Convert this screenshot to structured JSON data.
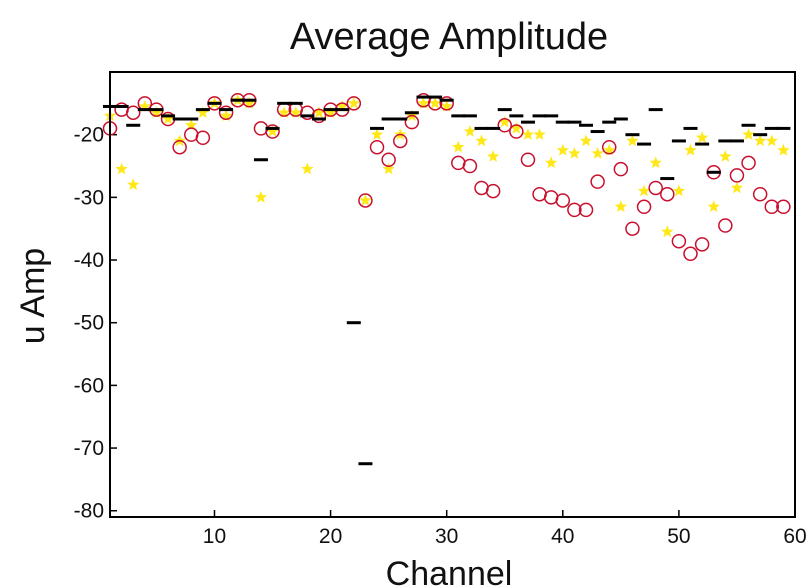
{
  "chart_data": {
    "type": "scatter",
    "title": "Average Amplitude",
    "xlabel": "Channel",
    "ylabel": "u Amp",
    "xlim": [
      1,
      60
    ],
    "ylim": [
      -81,
      -10
    ],
    "xticks": [
      10,
      20,
      30,
      40,
      50,
      60
    ],
    "yticks": [
      -20,
      -30,
      -40,
      -50,
      -60,
      -70,
      -80
    ],
    "grid": false,
    "series": [
      {
        "marker": "dash",
        "color": "#000000",
        "points": [
          [
            1,
            -15.5
          ],
          [
            2,
            -15.5
          ],
          [
            3,
            -18.5
          ],
          [
            4,
            -16
          ],
          [
            5,
            -16
          ],
          [
            6,
            -17
          ],
          [
            7,
            -17.5
          ],
          [
            8,
            -17.5
          ],
          [
            9,
            -16
          ],
          [
            10,
            -15
          ],
          [
            11,
            -16
          ],
          [
            12,
            -14.5
          ],
          [
            13,
            -14.5
          ],
          [
            14,
            -24
          ],
          [
            15,
            -19
          ],
          [
            16,
            -15
          ],
          [
            17,
            -15
          ],
          [
            18,
            -17
          ],
          [
            19,
            -17.5
          ],
          [
            20,
            -16
          ],
          [
            21,
            -16
          ],
          [
            22,
            -50
          ],
          [
            23,
            -72.5
          ],
          [
            24,
            -19
          ],
          [
            25,
            -17.5
          ],
          [
            26,
            -17.5
          ],
          [
            27,
            -16.5
          ],
          [
            28,
            -14
          ],
          [
            29,
            -14
          ],
          [
            30,
            -14.5
          ],
          [
            31,
            -17
          ],
          [
            32,
            -17
          ],
          [
            33,
            -19
          ],
          [
            34,
            -19
          ],
          [
            35,
            -16
          ],
          [
            36,
            -17
          ],
          [
            37,
            -18
          ],
          [
            38,
            -17
          ],
          [
            39,
            -17
          ],
          [
            40,
            -18
          ],
          [
            41,
            -18
          ],
          [
            42,
            -18.5
          ],
          [
            43,
            -19.5
          ],
          [
            44,
            -18
          ],
          [
            45,
            -17.5
          ],
          [
            46,
            -20
          ],
          [
            47,
            -21.5
          ],
          [
            48,
            -16
          ],
          [
            49,
            -27
          ],
          [
            50,
            -21
          ],
          [
            51,
            -19
          ],
          [
            52,
            -21.5
          ],
          [
            53,
            -26
          ],
          [
            54,
            -21
          ],
          [
            55,
            -21
          ],
          [
            56,
            -18.5
          ],
          [
            57,
            -20
          ],
          [
            58,
            -19
          ],
          [
            59,
            -19
          ]
        ]
      },
      {
        "marker": "circle",
        "color": "#c8102e",
        "points": [
          [
            1,
            -19
          ],
          [
            2,
            -16
          ],
          [
            3,
            -16.5
          ],
          [
            4,
            -15
          ],
          [
            5,
            -16
          ],
          [
            6,
            -17.5
          ],
          [
            7,
            -22
          ],
          [
            8,
            -20
          ],
          [
            9,
            -20.5
          ],
          [
            10,
            -15
          ],
          [
            11,
            -16.5
          ],
          [
            12,
            -14.5
          ],
          [
            13,
            -14.5
          ],
          [
            14,
            -19
          ],
          [
            15,
            -19.5
          ],
          [
            16,
            -16
          ],
          [
            17,
            -16
          ],
          [
            18,
            -16.5
          ],
          [
            19,
            -17
          ],
          [
            20,
            -16
          ],
          [
            21,
            -16
          ],
          [
            22,
            -15
          ],
          [
            23,
            -30.5
          ],
          [
            24,
            -22
          ],
          [
            25,
            -24
          ],
          [
            26,
            -21
          ],
          [
            27,
            -18
          ],
          [
            28,
            -14.5
          ],
          [
            29,
            -15
          ],
          [
            30,
            -15
          ],
          [
            31,
            -24.5
          ],
          [
            32,
            -25
          ],
          [
            33,
            -28.5
          ],
          [
            34,
            -29
          ],
          [
            35,
            -18.5
          ],
          [
            36,
            -19.5
          ],
          [
            37,
            -24
          ],
          [
            38,
            -29.5
          ],
          [
            39,
            -30
          ],
          [
            40,
            -30.5
          ],
          [
            41,
            -32
          ],
          [
            42,
            -32
          ],
          [
            43,
            -27.5
          ],
          [
            44,
            -22
          ],
          [
            45,
            -25.5
          ],
          [
            46,
            -35
          ],
          [
            47,
            -31.5
          ],
          [
            48,
            -28.5
          ],
          [
            49,
            -29.5
          ],
          [
            50,
            -37
          ],
          [
            51,
            -39
          ],
          [
            52,
            -37.5
          ],
          [
            53,
            -26
          ],
          [
            54,
            -34.5
          ],
          [
            55,
            -26.5
          ],
          [
            56,
            -24.5
          ],
          [
            57,
            -29.5
          ],
          [
            58,
            -31.5
          ],
          [
            59,
            -31.5
          ]
        ]
      },
      {
        "marker": "star",
        "color": "#ffe600",
        "points": [
          [
            1,
            -17
          ],
          [
            2,
            -25.5
          ],
          [
            3,
            -28
          ],
          [
            4,
            -15.5
          ],
          [
            5,
            -16.5
          ],
          [
            6,
            -17.5
          ],
          [
            7,
            -21
          ],
          [
            8,
            -18.5
          ],
          [
            9,
            -16.5
          ],
          [
            10,
            -15
          ],
          [
            11,
            -17
          ],
          [
            12,
            -14.5
          ],
          [
            13,
            -15
          ],
          [
            14,
            -30
          ],
          [
            15,
            -19.5
          ],
          [
            16,
            -16.5
          ],
          [
            17,
            -16.5
          ],
          [
            18,
            -25.5
          ],
          [
            19,
            -16.5
          ],
          [
            20,
            -16.5
          ],
          [
            21,
            -15.5
          ],
          [
            22,
            -15
          ],
          [
            23,
            -30.5
          ],
          [
            24,
            -20
          ],
          [
            25,
            -25.5
          ],
          [
            26,
            -20
          ],
          [
            27,
            -17
          ],
          [
            28,
            -15
          ],
          [
            29,
            -15
          ],
          [
            30,
            -15.5
          ],
          [
            31,
            -22
          ],
          [
            32,
            -19.5
          ],
          [
            33,
            -21
          ],
          [
            34,
            -23.5
          ],
          [
            35,
            -18
          ],
          [
            36,
            -19
          ],
          [
            37,
            -20
          ],
          [
            38,
            -20
          ],
          [
            39,
            -24.5
          ],
          [
            40,
            -22.5
          ],
          [
            41,
            -23
          ],
          [
            42,
            -21
          ],
          [
            43,
            -23
          ],
          [
            44,
            -22.5
          ],
          [
            45,
            -31.5
          ],
          [
            46,
            -21
          ],
          [
            47,
            -29
          ],
          [
            48,
            -24.5
          ],
          [
            49,
            -35.5
          ],
          [
            50,
            -29
          ],
          [
            51,
            -22.5
          ],
          [
            52,
            -20.5
          ],
          [
            53,
            -31.5
          ],
          [
            54,
            -23.5
          ],
          [
            55,
            -28.5
          ],
          [
            56,
            -20
          ],
          [
            57,
            -21
          ],
          [
            58,
            -21
          ],
          [
            59,
            -22.5
          ]
        ]
      }
    ]
  }
}
